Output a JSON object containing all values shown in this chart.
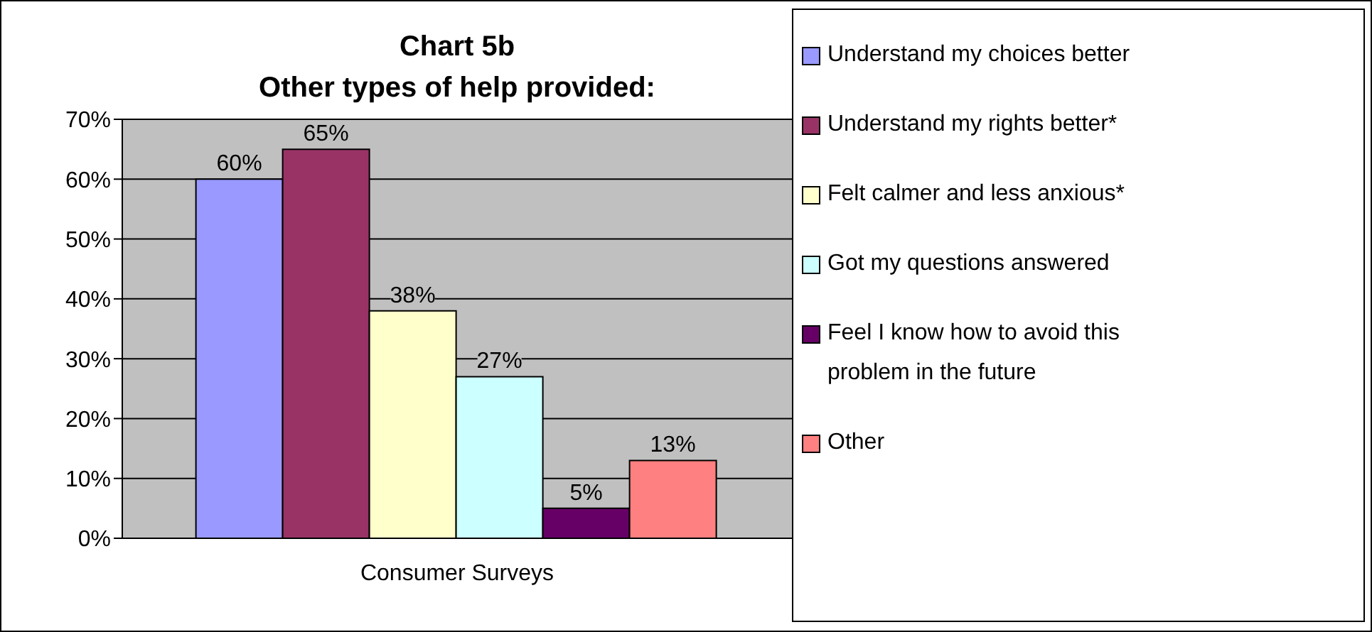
{
  "chart_data": {
    "type": "bar",
    "title": "Chart 5b",
    "subtitle": "Other types of help provided:",
    "categories": [
      "Consumer Surveys"
    ],
    "series": [
      {
        "name": "Understand my choices better",
        "color": "#9999ff",
        "values": [
          60
        ],
        "value_labels": [
          "60%"
        ]
      },
      {
        "name": "Understand my rights better*",
        "color": "#993366",
        "values": [
          65
        ],
        "value_labels": [
          "65%"
        ]
      },
      {
        "name": "Felt calmer and less anxious*",
        "color": "#ffffcc",
        "values": [
          38
        ],
        "value_labels": [
          "38%"
        ]
      },
      {
        "name": "Got my questions answered",
        "color": "#ccffff",
        "values": [
          27
        ],
        "value_labels": [
          "27%"
        ]
      },
      {
        "name": "Feel I know how to avoid this problem in the future",
        "color": "#660066",
        "values": [
          5
        ],
        "value_labels": [
          "5%"
        ]
      },
      {
        "name": "Other",
        "color": "#ff8080",
        "values": [
          13
        ],
        "value_labels": [
          "13%"
        ]
      }
    ],
    "ylim": [
      0,
      70
    ],
    "yticks": [
      {
        "value": 0,
        "label": "0%"
      },
      {
        "value": 10,
        "label": "10%"
      },
      {
        "value": 20,
        "label": "20%"
      },
      {
        "value": 30,
        "label": "30%"
      },
      {
        "value": 40,
        "label": "40%"
      },
      {
        "value": 50,
        "label": "50%"
      },
      {
        "value": 60,
        "label": "60%"
      },
      {
        "value": 70,
        "label": "70%"
      }
    ],
    "grid": "y",
    "legend": "right"
  }
}
